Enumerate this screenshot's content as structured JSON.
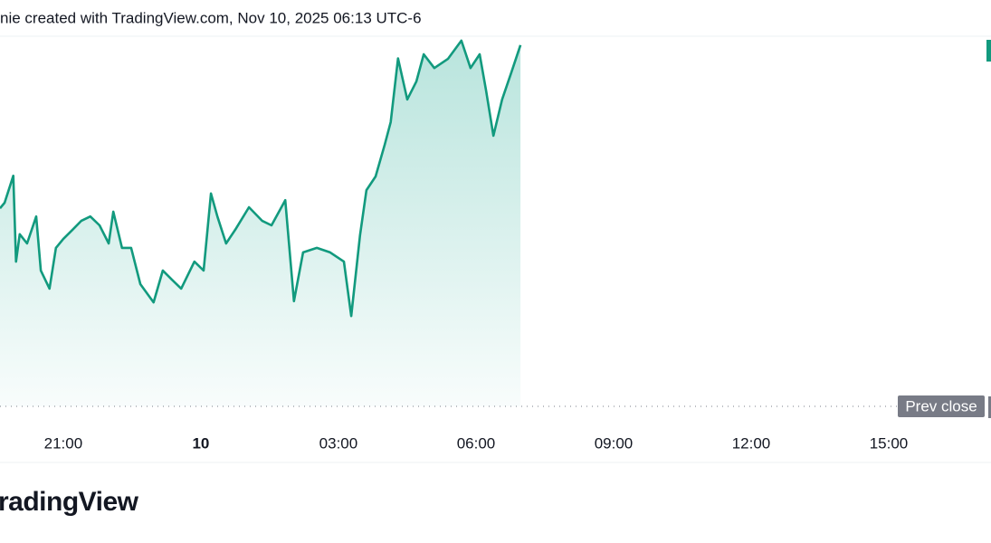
{
  "header": {
    "text": "nie created with TradingView.com, Nov 10, 2025 06:13 UTC-6"
  },
  "footer": {
    "logo": "radingView"
  },
  "chart_data": {
    "type": "area",
    "color": "#129a7e",
    "x": [
      -4.38,
      -4.28,
      -4.09,
      -4.03,
      -3.95,
      -3.79,
      -3.59,
      -3.49,
      -3.3,
      -3.16,
      -3,
      -2.8,
      -2.61,
      -2.41,
      -2.21,
      -2.01,
      -1.91,
      -1.72,
      -1.52,
      -1.32,
      -1.03,
      -0.83,
      -0.63,
      -0.43,
      -0.14,
      0.06,
      0.22,
      0.36,
      0.55,
      0.75,
      1.05,
      1.34,
      1.54,
      1.84,
      2.03,
      2.23,
      2.53,
      2.82,
      3.12,
      3.28,
      3.47,
      3.61,
      3.81,
      4.01,
      4.14,
      4.3,
      4.5,
      4.7,
      4.86,
      5.09,
      5.39,
      5.68,
      5.88,
      6.08,
      6.22,
      6.38,
      6.57,
      6.77,
      6.97
    ],
    "values": [
      53.5,
      55,
      62.3,
      39.1,
      46.5,
      44,
      51.3,
      36.7,
      31.8,
      42.8,
      45.2,
      47.7,
      50.1,
      51.3,
      48.9,
      44,
      52.6,
      42.8,
      42.8,
      33,
      28.1,
      36.7,
      34.2,
      31.8,
      39.1,
      36.7,
      57.5,
      51.3,
      44,
      47.7,
      53.8,
      50.1,
      48.9,
      55.7,
      28.4,
      41.6,
      42.8,
      41.6,
      39.1,
      24.4,
      46.2,
      58.4,
      62.1,
      70.7,
      76.8,
      94,
      82.9,
      87.8,
      95.1,
      91.4,
      93.9,
      98.8,
      91.4,
      95.1,
      85.3,
      73.1,
      82.9,
      90.2,
      97.6
    ],
    "xlim": [
      -4.38,
      17.23
    ],
    "ylim": [
      0,
      100
    ],
    "xticks": [
      {
        "value": -3,
        "label": "21:00"
      },
      {
        "value": 0,
        "label": "10"
      },
      {
        "value": 3,
        "label": "03:00"
      },
      {
        "value": 6,
        "label": "06:00"
      },
      {
        "value": 9,
        "label": "09:00"
      },
      {
        "value": 12,
        "label": "12:00"
      },
      {
        "value": 15,
        "label": "15:00"
      }
    ],
    "reference_line": {
      "label": "Prev close",
      "value": 0
    }
  }
}
